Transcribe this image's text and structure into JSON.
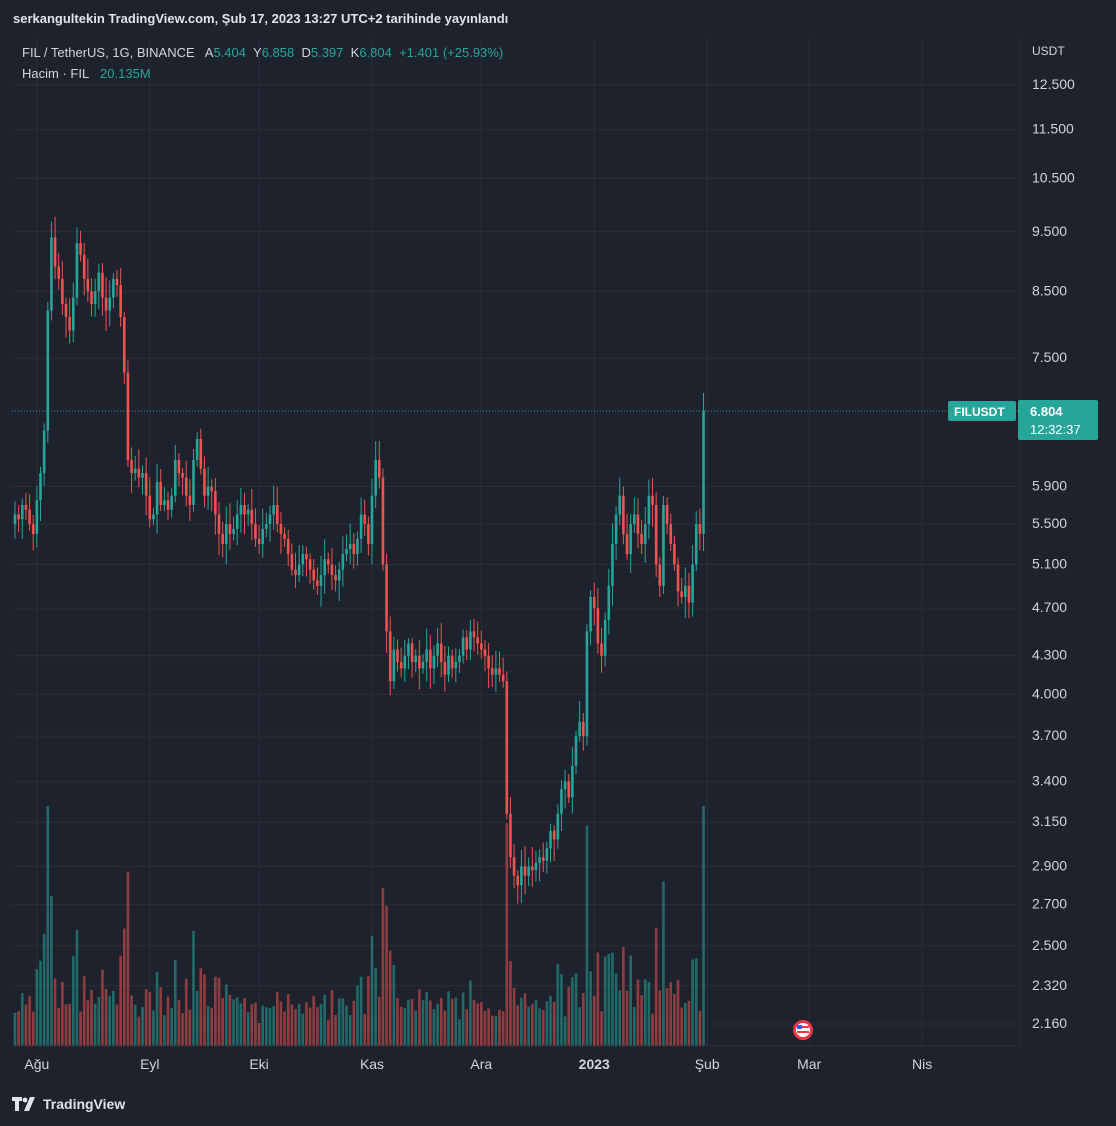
{
  "header": {
    "published_line": "serkangultekin TradingView.com, Şub 17, 2023 13:27 UTC+2 tarihinde yayınlandı"
  },
  "legend": {
    "symbol_line": "FIL / TetherUS, 1G, BINANCE",
    "open_label": "A",
    "open_value": "5.404",
    "high_label": "Y",
    "high_value": "6.858",
    "low_label": "D",
    "low_value": "5.397",
    "close_label": "K",
    "close_value": "6.804",
    "change": "+1.401 (+25.93%)",
    "volume_label": "Hacim · FIL",
    "volume_value": "20.135M"
  },
  "price_axis": {
    "currency": "USDT"
  },
  "last_price": {
    "symbol": "FILUSDT",
    "price": "6.804",
    "countdown": "12:32:37"
  },
  "footer": {
    "brand": "TradingView"
  },
  "colors": {
    "up": "#26a69a",
    "down": "#ef5350",
    "background": "#1e222d",
    "grid": "#2a2e39"
  },
  "chart_data": {
    "type": "candlestick",
    "title": "FIL / TetherUS, 1G, BINANCE",
    "y_scale": "log",
    "ylim": [
      2.05,
      13.4
    ],
    "y_ticks": [
      "12.500",
      "11.500",
      "10.500",
      "9.500",
      "8.500",
      "7.500",
      "5.900",
      "5.500",
      "5.100",
      "4.700",
      "4.300",
      "4.000",
      "3.700",
      "3.400",
      "3.150",
      "2.900",
      "2.700",
      "2.500",
      "2.320",
      "2.160"
    ],
    "x_ticks": [
      "Ağu",
      "Eyl",
      "Eki",
      "Kas",
      "Ara",
      "2023",
      "Şub",
      "Mar",
      "Nis"
    ],
    "x_start_date": "2022-07-26",
    "series": [
      {
        "name": "FILUSDT",
        "kind": "close",
        "values": [
          5.6,
          5.55,
          5.7,
          5.65,
          5.5,
          5.4,
          5.75,
          6.05,
          6.55,
          8.2,
          9.4,
          8.9,
          8.7,
          8.3,
          8.1,
          7.9,
          8.4,
          9.3,
          9.1,
          8.7,
          8.5,
          8.3,
          8.5,
          8.8,
          8.4,
          8.2,
          8.4,
          8.7,
          8.6,
          8.1,
          7.3,
          6.2,
          6.05,
          6.1,
          6.0,
          6.05,
          5.8,
          5.55,
          5.6,
          5.95,
          5.7,
          5.75,
          5.65,
          5.8,
          6.2,
          6.05,
          6.0,
          5.8,
          5.7,
          6.2,
          6.45,
          6.1,
          5.8,
          5.9,
          5.85,
          5.6,
          5.4,
          5.3,
          5.5,
          5.4,
          5.45,
          5.6,
          5.7,
          5.6,
          5.65,
          5.5,
          5.35,
          5.3,
          5.45,
          5.5,
          5.6,
          5.7,
          5.5,
          5.4,
          5.35,
          5.2,
          5.05,
          5.0,
          5.1,
          5.2,
          5.15,
          5.05,
          4.95,
          4.9,
          5.0,
          5.15,
          5.1,
          5.0,
          4.95,
          5.05,
          5.2,
          5.25,
          5.3,
          5.2,
          5.35,
          5.6,
          5.5,
          5.3,
          5.8,
          6.2,
          6.0,
          5.1,
          4.5,
          4.1,
          4.35,
          4.25,
          4.2,
          4.3,
          4.4,
          4.25,
          4.3,
          4.2,
          4.25,
          4.35,
          4.2,
          4.3,
          4.4,
          4.25,
          4.15,
          4.3,
          4.2,
          4.25,
          4.3,
          4.45,
          4.35,
          4.5,
          4.45,
          4.4,
          4.35,
          4.3,
          4.2,
          4.15,
          4.2,
          4.15,
          4.1,
          3.2,
          2.95,
          2.85,
          2.8,
          2.9,
          2.85,
          2.9,
          2.88,
          2.92,
          2.95,
          2.93,
          3.0,
          3.1,
          3.05,
          3.2,
          3.35,
          3.4,
          3.3,
          3.5,
          3.7,
          3.8,
          3.7,
          4.5,
          4.8,
          4.7,
          4.4,
          4.3,
          4.6,
          4.9,
          5.3,
          5.6,
          5.8,
          5.4,
          5.2,
          5.5,
          5.6,
          5.4,
          5.3,
          5.5,
          5.8,
          5.7,
          5.1,
          4.9,
          5.7,
          5.5,
          5.3,
          5.1,
          4.85,
          4.8,
          4.9,
          4.75,
          5.1,
          5.5,
          5.4,
          6.8
        ]
      }
    ]
  }
}
